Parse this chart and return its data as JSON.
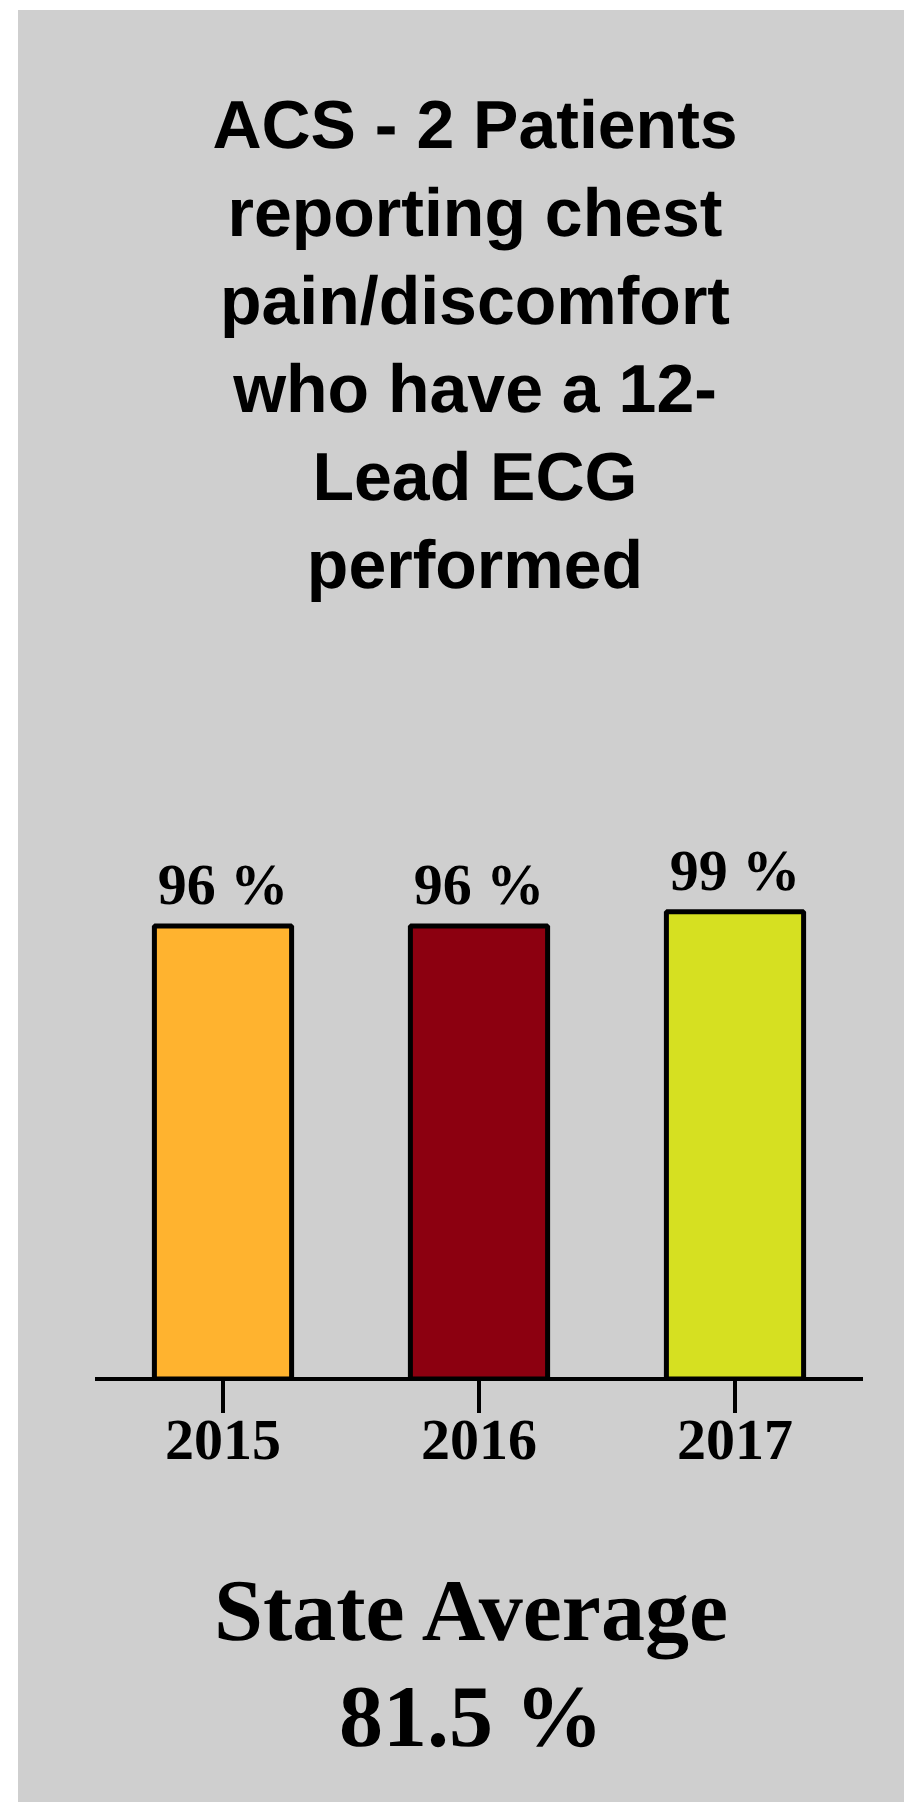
{
  "chart_data": {
    "type": "bar",
    "title": "ACS - 2 Patients reporting chest pain/discomfort who have a 12-Lead ECG performed",
    "categories": [
      "2015",
      "2016",
      "2017"
    ],
    "values": [
      96,
      96,
      99
    ],
    "colors": [
      "#ffb32f",
      "#8c0010",
      "#d6e021"
    ],
    "value_labels": [
      "96 %",
      "96 %",
      "99 %"
    ],
    "annotations": [
      "State Average 81.5 %"
    ],
    "tick_labels": "x"
  }
}
